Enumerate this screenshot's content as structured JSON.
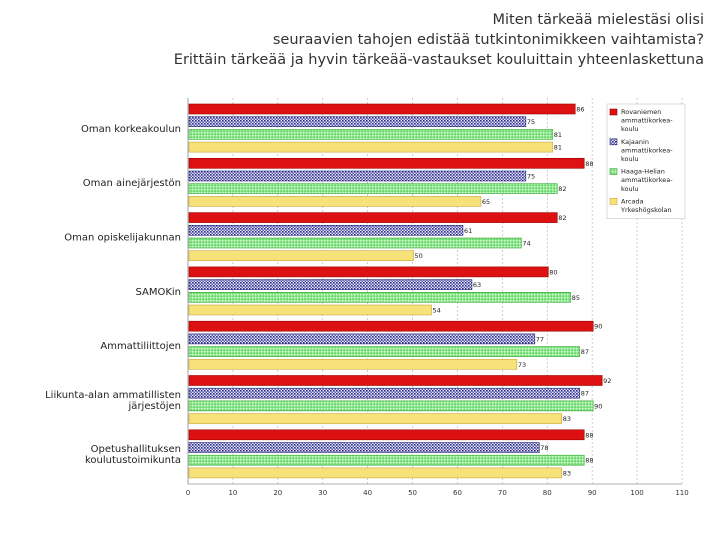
{
  "title": {
    "line1": "Miten tärkeää mielestäsi olisi",
    "line2": "seuraavien tahojen edistää tutkintonimikkeen vaihtamista?",
    "line3": "Erittäin tärkeää ja hyvin tärkeää-vastaukset kouluittain yhteenlaskettuna"
  },
  "chart_data": {
    "type": "bar",
    "orientation": "horizontal",
    "title": "Miten tärkeää mielestäsi olisi seuraavien tahojen edistää tutkintonimikkeen vaihtamista? Erittäin tärkeää ja hyvin tärkeää-vastaukset kouluittain yhteenlaskettuna",
    "categories": [
      [
        "Oman korkeakoulun"
      ],
      [
        "Oman ainejärjestön"
      ],
      [
        "Oman opiskelijakunnan"
      ],
      [
        "SAMOKin"
      ],
      [
        "Ammattiliittojen"
      ],
      [
        "Liikunta-alan ammatillisten",
        "järjestöjen"
      ],
      [
        "Opetushallituksen",
        "koulutustoimikunta"
      ]
    ],
    "series": [
      {
        "name": [
          "Rovaniemen",
          "ammattikorkea-",
          "koulu"
        ],
        "color": "#dd1111",
        "pattern": "solid",
        "values": [
          86,
          88,
          82,
          80,
          90,
          92,
          88
        ]
      },
      {
        "name": [
          "Kajaanin",
          "ammattikorkea-",
          "koulu"
        ],
        "color": "#3c3c9a",
        "pattern": "hatch",
        "values": [
          75,
          75,
          61,
          63,
          77,
          87,
          78
        ]
      },
      {
        "name": [
          "Haaga-Helian",
          "ammattikorkea-",
          "koulu"
        ],
        "color": "#6ed86e",
        "pattern": "dots",
        "values": [
          81,
          82,
          74,
          85,
          87,
          90,
          88
        ]
      },
      {
        "name": [
          "Arcada",
          "Yrkeshögskolan"
        ],
        "color": "#f7e27a",
        "pattern": "solid",
        "values": [
          81,
          65,
          50,
          54,
          73,
          83,
          83
        ]
      }
    ],
    "xlim": [
      0,
      110
    ],
    "xticks": [
      0,
      10,
      20,
      30,
      40,
      50,
      60,
      70,
      80,
      90,
      100,
      110
    ],
    "grid": true,
    "legend": "right"
  }
}
